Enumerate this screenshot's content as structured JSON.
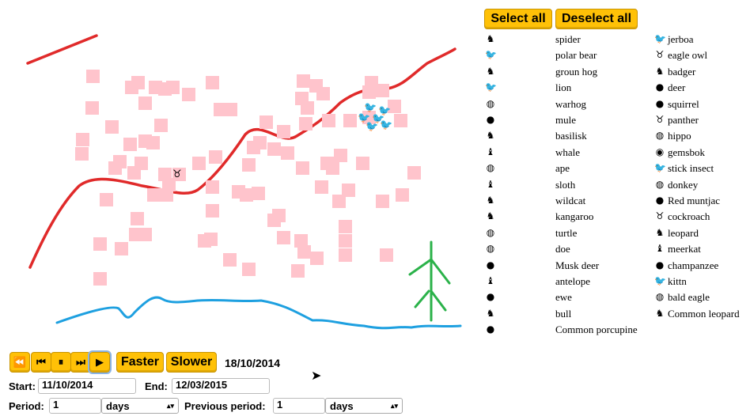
{
  "controls": {
    "select_all": "Select all",
    "deselect_all": "Deselect all",
    "faster": "Faster",
    "slower": "Slower",
    "current_date": "18/10/2014",
    "start_label": "Start:",
    "start_value": "11/10/2014",
    "end_label": "End:",
    "end_value": "12/03/2015",
    "period_label": "Period:",
    "period_value": "1",
    "period_unit": "days",
    "previous_period_label": "Previous period:",
    "previous_period_value": "1",
    "previous_period_unit": "days"
  },
  "legend_left": [
    {
      "label": "spider",
      "icon": "horse-head-icon"
    },
    {
      "label": "polar bear",
      "icon": "bird-icon"
    },
    {
      "label": "groun hog",
      "icon": "horse-head-icon"
    },
    {
      "label": "lion",
      "icon": "bird-icon"
    },
    {
      "label": "warhog",
      "icon": "globe-icon"
    },
    {
      "label": "mule",
      "icon": "bear-icon"
    },
    {
      "label": "basilisk",
      "icon": "horse-head-icon"
    },
    {
      "label": "whale",
      "icon": "rabbit-icon"
    },
    {
      "label": "ape",
      "icon": "globe-icon"
    },
    {
      "label": "sloth",
      "icon": "rabbit-icon"
    },
    {
      "label": "wildcat",
      "icon": "horse-head-icon"
    },
    {
      "label": "kangaroo",
      "icon": "horse-head-icon"
    },
    {
      "label": "turtle",
      "icon": "globe-icon"
    },
    {
      "label": "doe",
      "icon": "globe-icon"
    },
    {
      "label": "Musk deer",
      "icon": "bear-icon"
    },
    {
      "label": "antelope",
      "icon": "rabbit-icon"
    },
    {
      "label": "ewe",
      "icon": "bear-icon"
    },
    {
      "label": "bull",
      "icon": "horse-head-icon"
    },
    {
      "label": "Common porcupine",
      "icon": "bear-icon"
    }
  ],
  "legend_right": [
    {
      "label": "jerboa",
      "icon": "bird-icon"
    },
    {
      "label": "eagle owl",
      "icon": "owl-icon"
    },
    {
      "label": "badger",
      "icon": "horse-head-icon"
    },
    {
      "label": "deer",
      "icon": "bear-icon"
    },
    {
      "label": "squirrel",
      "icon": "bear-icon"
    },
    {
      "label": "panther",
      "icon": "owl-icon"
    },
    {
      "label": "hippo",
      "icon": "globe-icon"
    },
    {
      "label": "gemsbok",
      "icon": "lion-icon"
    },
    {
      "label": "stick insect",
      "icon": "bird-icon"
    },
    {
      "label": "donkey",
      "icon": "globe-icon"
    },
    {
      "label": "Red muntjac",
      "icon": "bear-icon"
    },
    {
      "label": "cockroach",
      "icon": "owl-icon"
    },
    {
      "label": "leopard",
      "icon": "horse-head-icon"
    },
    {
      "label": "meerkat",
      "icon": "rabbit-icon"
    },
    {
      "label": "champanzee",
      "icon": "bear-icon"
    },
    {
      "label": "kittn",
      "icon": "bird-icon"
    },
    {
      "label": "bald eagle",
      "icon": "globe-icon"
    },
    {
      "label": "Common leopard",
      "icon": "horse-head-icon"
    }
  ],
  "icon_glyphs": {
    "horse-head-icon": "♞",
    "bird-icon": "🐦",
    "globe-icon": "◍",
    "bear-icon": "●",
    "rabbit-icon": "♝",
    "owl-icon": "♉",
    "lion-icon": "◉",
    "cow-icon": "♉"
  },
  "colors": {
    "button": "#ffc107",
    "tile": "#ffc4cc",
    "road": "#e02a2a",
    "river": "#1ea0e0",
    "tree": "#2bb24a"
  }
}
